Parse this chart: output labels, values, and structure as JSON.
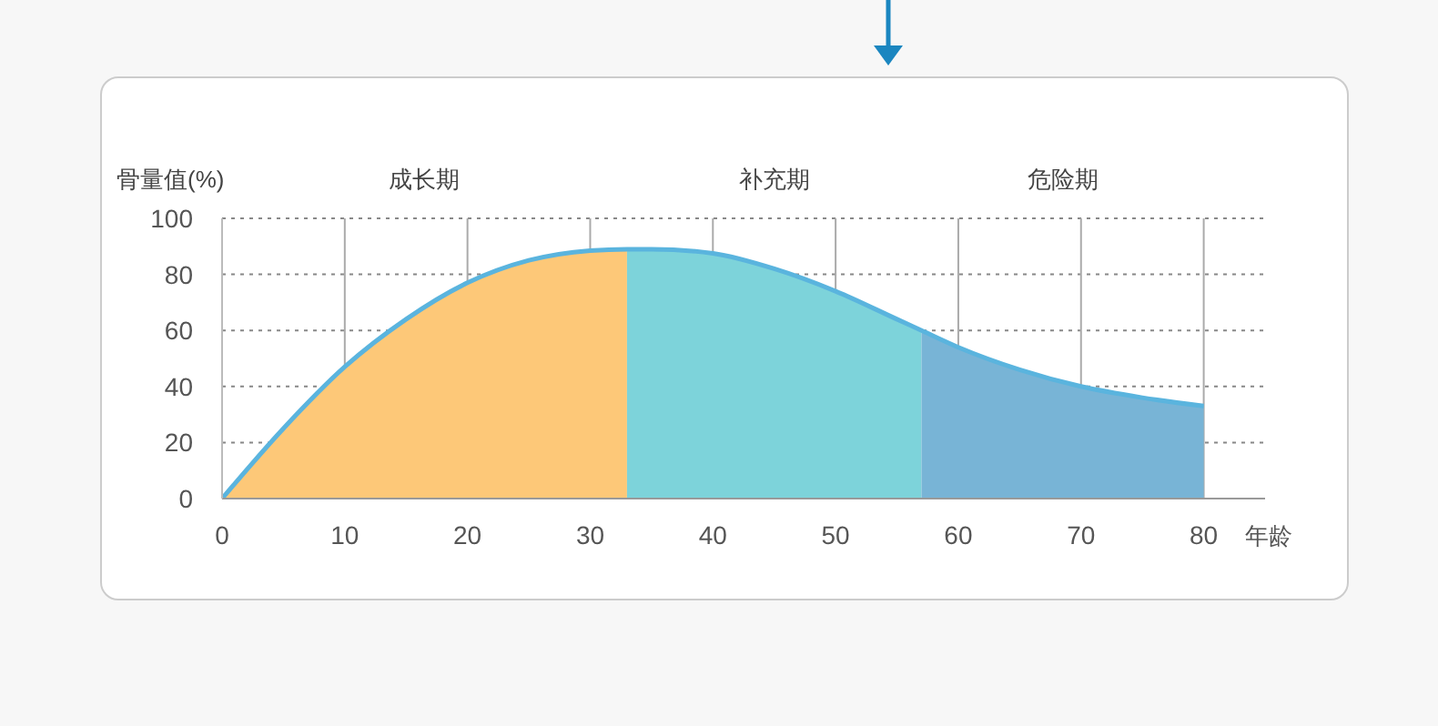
{
  "chart_data": {
    "type": "area",
    "ylabel": "骨量值(%)",
    "xlabel": "年龄",
    "xlim": [
      0,
      85
    ],
    "xticks": [
      0,
      10,
      20,
      30,
      40,
      50,
      60,
      70,
      80
    ],
    "ylim": [
      0,
      100
    ],
    "yticks": [
      0,
      20,
      40,
      60,
      80,
      100
    ],
    "grid": true,
    "annotations": [
      "成长期",
      "补充期",
      "危险期"
    ],
    "series": [
      {
        "color": "#fdc878",
        "x": [
          0,
          5,
          10,
          15,
          20,
          25,
          30,
          33
        ],
        "values": [
          0,
          25,
          47,
          64,
          77,
          85,
          88.5,
          89
        ]
      },
      {
        "color": "#7dd3da",
        "x": [
          33,
          35,
          40,
          45,
          50,
          55,
          57
        ],
        "values": [
          89,
          89,
          87.5,
          82,
          74,
          64,
          60
        ]
      },
      {
        "color": "#78b4d6",
        "x": [
          57,
          60,
          65,
          70,
          75,
          80
        ],
        "values": [
          60,
          54,
          46,
          40,
          36,
          33
        ]
      },
      {
        "type": "line",
        "color": "#5ab4de",
        "x": [
          0,
          5,
          10,
          15,
          20,
          25,
          30,
          33,
          35,
          40,
          45,
          50,
          55,
          57,
          60,
          65,
          70,
          75,
          80
        ],
        "values": [
          0,
          25,
          47,
          64,
          77,
          85,
          88.5,
          89,
          89,
          87.5,
          82,
          74,
          64,
          60,
          54,
          46,
          40,
          36,
          33
        ]
      }
    ]
  }
}
